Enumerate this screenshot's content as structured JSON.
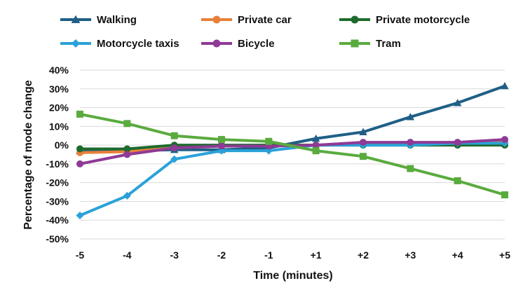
{
  "chart_data": {
    "type": "line",
    "title": "",
    "xlabel": "Time (minutes)",
    "ylabel": "Percentage of mode change",
    "categories": [
      "-5",
      "-4",
      "-3",
      "-2",
      "-1",
      "+1",
      "+2",
      "+3",
      "+4",
      "+5"
    ],
    "ylim": [
      -50,
      40
    ],
    "yticks": [
      40,
      30,
      20,
      10,
      0,
      -10,
      -20,
      -30,
      -40,
      -50
    ],
    "ytick_labels": [
      "40%",
      "30%",
      "20%",
      "10%",
      "0%",
      "-10%",
      "-20%",
      "-30%",
      "-40%",
      "-50%"
    ],
    "grid": true,
    "legend_position": "top",
    "series": [
      {
        "name": "Walking",
        "color": "#1f5f86",
        "marker": "triangle",
        "values": [
          -3,
          -3,
          -2.5,
          -2.5,
          -1.5,
          3.5,
          7,
          15,
          22.5,
          31.5
        ]
      },
      {
        "name": "Private car",
        "color": "#e8803a",
        "marker": "circle",
        "values": [
          -4,
          -3.5,
          -1.5,
          -0.5,
          0,
          0,
          1,
          1,
          1,
          2
        ]
      },
      {
        "name": "Private motorcycle",
        "color": "#1e6b2e",
        "marker": "circle",
        "values": [
          -2,
          -2,
          0,
          0,
          0,
          0,
          0,
          0,
          0,
          0
        ]
      },
      {
        "name": "Motorcycle taxis",
        "color": "#2aa2d8",
        "marker": "diamond",
        "values": [
          -37.5,
          -27,
          -7.5,
          -3,
          -3,
          0,
          0,
          0,
          1,
          1
        ]
      },
      {
        "name": "Bicycle",
        "color": "#8e3a96",
        "marker": "circle",
        "values": [
          -10,
          -5,
          -1.5,
          -0.5,
          -0.5,
          0,
          1.5,
          1.5,
          1.5,
          3
        ]
      },
      {
        "name": "Tram",
        "color": "#5aab3e",
        "marker": "square",
        "values": [
          16.5,
          11.5,
          5,
          3,
          2,
          -3,
          -6,
          -12.5,
          -19,
          -26.5
        ]
      }
    ]
  }
}
